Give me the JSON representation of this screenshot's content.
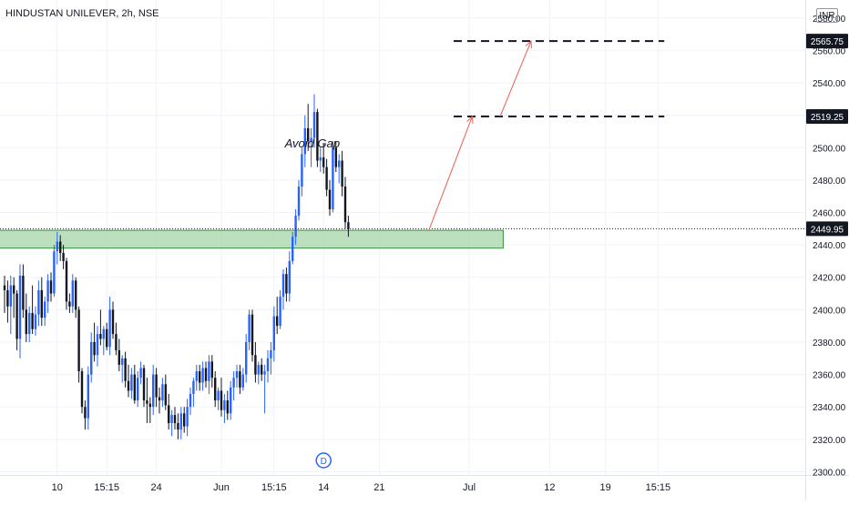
{
  "header": {
    "title": "HINDUSTAN UNILEVER, 2h, NSE",
    "currency": "INR"
  },
  "colors": {
    "up": "#2962ff",
    "down": "#131722",
    "zone_fill": "#a5d6a7",
    "zone_border": "#388e3c",
    "arrow": "#f05d4f",
    "level_line": "#131722",
    "grid": "#f0f3fa",
    "axis_text": "#131722"
  },
  "chart_data": {
    "type": "candlestick",
    "ylim": [
      2298,
      2590
    ],
    "y_ticks": [
      2300,
      2320,
      2340,
      2360,
      2380,
      2400,
      2420,
      2440,
      2460,
      2480,
      2500,
      2520,
      2540,
      2560,
      2580
    ],
    "y_tick_labels": [
      "2300.00",
      "2320.00",
      "2340.00",
      "2360.00",
      "2380.00",
      "2400.00",
      "2420.00",
      "2440.00",
      "2460.00",
      "2480.00",
      "2500.00",
      "2520.00",
      "2540.00",
      "2560.00",
      "2580.00"
    ],
    "x_labels": [
      {
        "label": "10",
        "bar": 17
      },
      {
        "label": "15:15",
        "bar": 33
      },
      {
        "label": "24",
        "bar": 49
      },
      {
        "label": "Jun",
        "bar": 70
      },
      {
        "label": "15:15",
        "bar": 87
      },
      {
        "label": "14",
        "bar": 103
      },
      {
        "label": "21",
        "bar": 121
      },
      {
        "label": "Jul",
        "bar": 150
      },
      {
        "label": "12",
        "bar": 176
      },
      {
        "label": "19",
        "bar": 194
      },
      {
        "label": "15:15",
        "bar": 211
      }
    ],
    "candles": [
      [
        2415,
        2421,
        2398,
        2412
      ],
      [
        2412,
        2418,
        2392,
        2402
      ],
      [
        2402,
        2421,
        2385,
        2415
      ],
      [
        2415,
        2420,
        2395,
        2410
      ],
      [
        2410,
        2412,
        2375,
        2382
      ],
      [
        2382,
        2428,
        2370,
        2421
      ],
      [
        2421,
        2428,
        2395,
        2400
      ],
      [
        2400,
        2410,
        2380,
        2385
      ],
      [
        2385,
        2402,
        2380,
        2398
      ],
      [
        2398,
        2415,
        2385,
        2388
      ],
      [
        2388,
        2402,
        2384,
        2397
      ],
      [
        2397,
        2418,
        2390,
        2412
      ],
      [
        2412,
        2420,
        2390,
        2395
      ],
      [
        2395,
        2408,
        2390,
        2405
      ],
      [
        2405,
        2422,
        2398,
        2418
      ],
      [
        2418,
        2423,
        2405,
        2410
      ],
      [
        2410,
        2440,
        2408,
        2436
      ],
      [
        2436,
        2448,
        2428,
        2442
      ],
      [
        2442,
        2446,
        2430,
        2435
      ],
      [
        2435,
        2440,
        2425,
        2430
      ],
      [
        2430,
        2432,
        2400,
        2405
      ],
      [
        2405,
        2410,
        2398,
        2402
      ],
      [
        2402,
        2422,
        2398,
        2418
      ],
      [
        2418,
        2420,
        2395,
        2400
      ],
      [
        2400,
        2402,
        2355,
        2362
      ],
      [
        2362,
        2364,
        2336,
        2340
      ],
      [
        2340,
        2344,
        2326,
        2333
      ],
      [
        2333,
        2365,
        2326,
        2360
      ],
      [
        2360,
        2386,
        2355,
        2380
      ],
      [
        2380,
        2392,
        2368,
        2372
      ],
      [
        2372,
        2390,
        2365,
        2385
      ],
      [
        2385,
        2400,
        2378,
        2382
      ],
      [
        2382,
        2390,
        2372,
        2388
      ],
      [
        2388,
        2392,
        2375,
        2377
      ],
      [
        2377,
        2408,
        2372,
        2400
      ],
      [
        2400,
        2405,
        2382,
        2385
      ],
      [
        2385,
        2392,
        2372,
        2375
      ],
      [
        2375,
        2382,
        2362,
        2366
      ],
      [
        2366,
        2372,
        2355,
        2370
      ],
      [
        2370,
        2374,
        2352,
        2356
      ],
      [
        2356,
        2366,
        2346,
        2350
      ],
      [
        2350,
        2364,
        2345,
        2360
      ],
      [
        2360,
        2366,
        2342,
        2344
      ],
      [
        2344,
        2362,
        2340,
        2358
      ],
      [
        2358,
        2368,
        2354,
        2364
      ],
      [
        2364,
        2366,
        2340,
        2344
      ],
      [
        2344,
        2358,
        2330,
        2342
      ],
      [
        2342,
        2346,
        2330,
        2340
      ],
      [
        2340,
        2366,
        2335,
        2360
      ],
      [
        2360,
        2364,
        2340,
        2346
      ],
      [
        2346,
        2352,
        2336,
        2344
      ],
      [
        2344,
        2358,
        2340,
        2354
      ],
      [
        2354,
        2360,
        2338,
        2341
      ],
      [
        2341,
        2348,
        2326,
        2330
      ],
      [
        2330,
        2338,
        2322,
        2335
      ],
      [
        2335,
        2340,
        2326,
        2330
      ],
      [
        2330,
        2336,
        2320,
        2326
      ],
      [
        2326,
        2340,
        2320,
        2336
      ],
      [
        2336,
        2340,
        2324,
        2328
      ],
      [
        2328,
        2345,
        2322,
        2340
      ],
      [
        2340,
        2352,
        2335,
        2348
      ],
      [
        2348,
        2358,
        2340,
        2356
      ],
      [
        2356,
        2366,
        2350,
        2362
      ],
      [
        2362,
        2366,
        2350,
        2355
      ],
      [
        2355,
        2368,
        2350,
        2364
      ],
      [
        2364,
        2368,
        2352,
        2356
      ],
      [
        2356,
        2372,
        2348,
        2368
      ],
      [
        2368,
        2372,
        2352,
        2358
      ],
      [
        2358,
        2362,
        2340,
        2344
      ],
      [
        2344,
        2352,
        2338,
        2350
      ],
      [
        2350,
        2358,
        2334,
        2338
      ],
      [
        2338,
        2348,
        2330,
        2344
      ],
      [
        2344,
        2350,
        2332,
        2336
      ],
      [
        2336,
        2356,
        2332,
        2352
      ],
      [
        2352,
        2362,
        2344,
        2358
      ],
      [
        2358,
        2366,
        2352,
        2362
      ],
      [
        2362,
        2366,
        2348,
        2352
      ],
      [
        2352,
        2364,
        2350,
        2360
      ],
      [
        2360,
        2385,
        2355,
        2380
      ],
      [
        2380,
        2400,
        2375,
        2397
      ],
      [
        2397,
        2400,
        2368,
        2372
      ],
      [
        2372,
        2380,
        2355,
        2360
      ],
      [
        2360,
        2368,
        2354,
        2366
      ],
      [
        2366,
        2370,
        2356,
        2360
      ],
      [
        2360,
        2366,
        2336,
        2362
      ],
      [
        2362,
        2375,
        2355,
        2370
      ],
      [
        2370,
        2380,
        2360,
        2375
      ],
      [
        2375,
        2402,
        2368,
        2396
      ],
      [
        2396,
        2408,
        2385,
        2390
      ],
      [
        2390,
        2412,
        2388,
        2408
      ],
      [
        2408,
        2425,
        2400,
        2422
      ],
      [
        2422,
        2426,
        2405,
        2410
      ],
      [
        2410,
        2436,
        2405,
        2430
      ],
      [
        2430,
        2448,
        2428,
        2445
      ],
      [
        2445,
        2462,
        2440,
        2458
      ],
      [
        2458,
        2480,
        2455,
        2476
      ],
      [
        2476,
        2500,
        2470,
        2496
      ],
      [
        2496,
        2520,
        2488,
        2512
      ],
      [
        2512,
        2527,
        2498,
        2504
      ],
      [
        2504,
        2512,
        2488,
        2506
      ],
      [
        2506,
        2533,
        2500,
        2522
      ],
      [
        2522,
        2524,
        2488,
        2492
      ],
      [
        2492,
        2500,
        2485,
        2494
      ],
      [
        2494,
        2502,
        2484,
        2488
      ],
      [
        2488,
        2493,
        2470,
        2474
      ],
      [
        2474,
        2480,
        2458,
        2462
      ],
      [
        2462,
        2504,
        2460,
        2500
      ],
      [
        2500,
        2504,
        2485,
        2488
      ],
      [
        2488,
        2496,
        2478,
        2492
      ],
      [
        2492,
        2498,
        2470,
        2476
      ],
      [
        2476,
        2482,
        2450,
        2454
      ],
      [
        2454,
        2458,
        2445,
        2449.95
      ]
    ],
    "last_price": 2449.95,
    "last_price_label": "2449.95",
    "zone": {
      "low": 2438,
      "high": 2449,
      "from_bar": -16,
      "to_bar": 161
    },
    "levels": [
      {
        "price": 2565.75,
        "label": "2565.75",
        "from_bar": 145,
        "to_bar": 213
      },
      {
        "price": 2519.25,
        "label": "2519.25",
        "from_bar": 145,
        "to_bar": 213
      }
    ],
    "projection": [
      {
        "bar": 137,
        "price": 2449
      },
      {
        "bar": 151,
        "price": 2519.25
      },
      {
        "bar": 160,
        "price": 2519.25
      },
      {
        "bar": 170,
        "price": 2565.75
      }
    ],
    "annotation": {
      "text": "Avoid Gap",
      "bar": 104,
      "price": 2503
    },
    "event_marker": {
      "label": "D",
      "bar": 103
    }
  }
}
